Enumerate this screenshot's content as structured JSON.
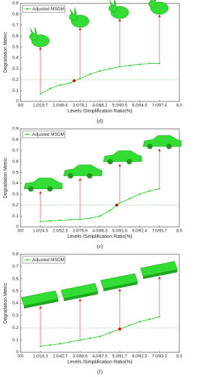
{
  "chart_data": [
    {
      "type": "line",
      "caption": "(d)",
      "ylabel": "Degradation Metric",
      "xlabel": "Levels /Simplification Ratio(%)",
      "series": [
        {
          "name": "Adjusted MSDM",
          "color": "#22cc22",
          "x": [
            1,
            1.5,
            2,
            2.5,
            3,
            3.5,
            4,
            4.5,
            5,
            5.5,
            6,
            6.5,
            7
          ],
          "values": [
            0.07,
            0.12,
            0.15,
            0.17,
            0.21,
            0.25,
            0.28,
            0.3,
            0.32,
            0.33,
            0.34,
            0.35,
            0.35
          ]
        }
      ],
      "highlight_point": {
        "x": 2.7,
        "y": 0.19,
        "color": "#cc1111"
      },
      "reference_line": 0.2,
      "xlim": [
        0,
        8
      ],
      "xticks": [
        {
          "value": 0,
          "label": "0/0"
        },
        {
          "value": 1,
          "label": "1.0/19.7"
        },
        {
          "value": 2,
          "label": "2.0/49.4"
        },
        {
          "value": 3,
          "label": "3.0/78.1"
        },
        {
          "value": 4,
          "label": "4.0/86.2"
        },
        {
          "value": 5,
          "label": "5.0/90.5"
        },
        {
          "value": 6,
          "label": "6.0/94.9"
        },
        {
          "value": 7,
          "label": "7.0/97.4"
        },
        {
          "value": 8,
          "label": "8.0"
        }
      ],
      "ylim": [
        0,
        0.9
      ],
      "yticks": [
        0,
        0.1,
        0.2,
        0.3,
        0.4,
        0.5,
        0.6,
        0.7,
        0.8,
        0.9
      ],
      "legend": "upper left"
    },
    {
      "type": "line",
      "caption": "(e)",
      "ylabel": "Degradation Metric",
      "xlabel": "Levels /Simplification Ratio(%)",
      "series": [
        {
          "name": "Adjusted MSDM",
          "color": "#22cc22",
          "x": [
            1,
            1.5,
            2,
            2.5,
            3,
            3.5,
            4,
            4.5,
            5,
            5.5,
            6,
            6.5,
            7
          ],
          "values": [
            0.05,
            0.055,
            0.06,
            0.065,
            0.07,
            0.08,
            0.1,
            0.15,
            0.22,
            0.26,
            0.3,
            0.33,
            0.35
          ]
        }
      ],
      "highlight_point": {
        "x": 4.85,
        "y": 0.2,
        "color": "#cc1111"
      },
      "reference_line": 0.2,
      "xlim": [
        0,
        8
      ],
      "xticks": [
        {
          "value": 0,
          "label": "0/0"
        },
        {
          "value": 1,
          "label": "1.0/24.3"
        },
        {
          "value": 2,
          "label": "2.0/52.3"
        },
        {
          "value": 3,
          "label": "3.0/76.6"
        },
        {
          "value": 4,
          "label": "4.0/86.3"
        },
        {
          "value": 5,
          "label": "5.0/91.8"
        },
        {
          "value": 6,
          "label": "6.0/92.4"
        },
        {
          "value": 7,
          "label": "7.0/93.7"
        },
        {
          "value": 8,
          "label": "8.0"
        }
      ],
      "ylim": [
        0,
        0.9
      ],
      "yticks": [
        0,
        0.1,
        0.2,
        0.3,
        0.4,
        0.5,
        0.6,
        0.7,
        0.8,
        0.9
      ],
      "legend": "upper left"
    },
    {
      "type": "line",
      "caption": "(f)",
      "ylabel": "Degradation Metric",
      "xlabel": "Levels /Simplification Ratio(%)",
      "series": [
        {
          "name": "Adjusted MSDM",
          "color": "#22cc22",
          "x": [
            1,
            1.5,
            2,
            2.5,
            3,
            3.5,
            4,
            4.5,
            5,
            5.5,
            6,
            6.5,
            7
          ],
          "values": [
            0.05,
            0.06,
            0.07,
            0.085,
            0.1,
            0.115,
            0.13,
            0.16,
            0.19,
            0.22,
            0.25,
            0.27,
            0.29
          ]
        }
      ],
      "highlight_point": {
        "x": 5,
        "y": 0.19,
        "color": "#cc1111"
      },
      "reference_line": 0.2,
      "xlim": [
        0,
        8
      ],
      "xticks": [
        {
          "value": 0,
          "label": "0/0"
        },
        {
          "value": 1,
          "label": "1.0/16.3"
        },
        {
          "value": 2,
          "label": "2.0/42.7"
        },
        {
          "value": 3,
          "label": "3.0/68.6"
        },
        {
          "value": 4,
          "label": "4.0/87.5"
        },
        {
          "value": 5,
          "label": "5.0/91.7"
        },
        {
          "value": 6,
          "label": "6.0/92.3"
        },
        {
          "value": 7,
          "label": "7.0/93.3"
        },
        {
          "value": 8,
          "label": "8.0"
        }
      ],
      "ylim": [
        0,
        0.8
      ],
      "yticks": [
        0,
        0.1,
        0.2,
        0.3,
        0.4,
        0.5,
        0.6,
        0.7,
        0.8
      ],
      "legend": "upper left"
    }
  ]
}
